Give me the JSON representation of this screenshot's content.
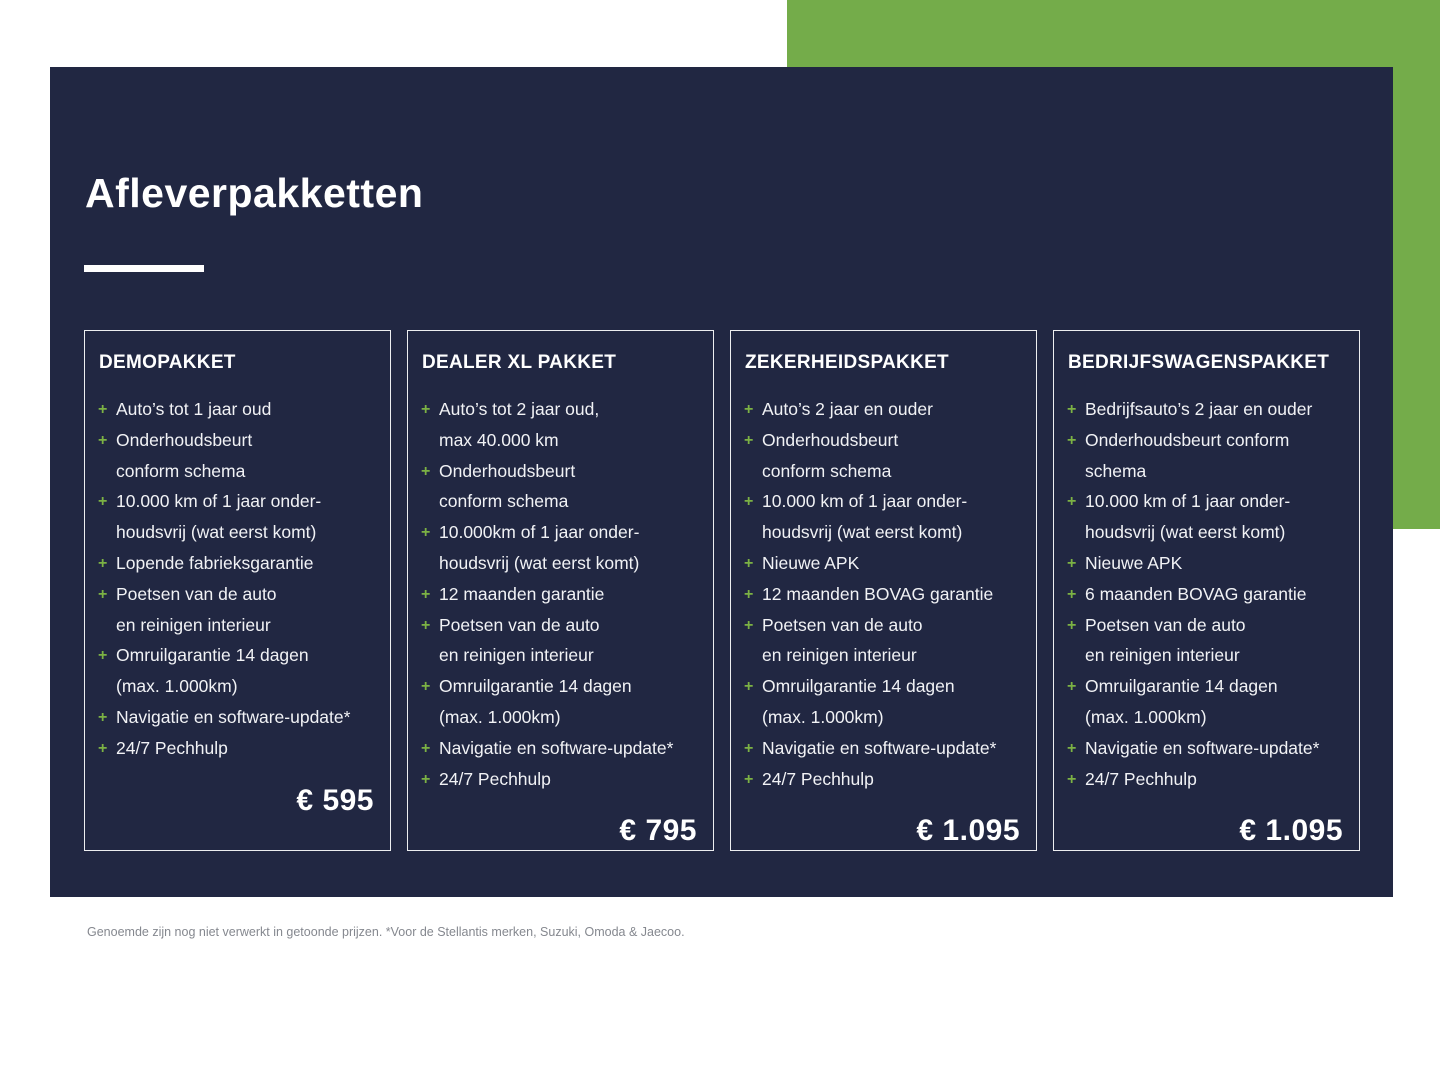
{
  "page": {
    "title": "Afleverpakketten",
    "footnote": "Genoemde zijn nog niet verwerkt in getoonde prijzen. *Voor de Stellantis merken, Suzuki, Omoda & Jaecoo."
  },
  "colors": {
    "navy": "#212742",
    "green": "#74AC4A",
    "plus": "#7CB244",
    "footer_text": "#85888F"
  },
  "plus_glyph": "+",
  "packages": [
    {
      "name": "DEMOPAKKET",
      "price": "€ 595",
      "items": [
        "Auto’s tot 1 jaar oud",
        "Onderhoudsbeurt\nconform schema",
        "10.000 km of 1 jaar onder-\nhoudsvrij (wat eerst komt)",
        "Lopende fabrieksgarantie",
        "Poetsen van de auto\nen reinigen interieur",
        "Omruilgarantie 14 dagen\n(max. 1.000km)",
        "Navigatie en software-update*",
        "24/7 Pechhulp"
      ]
    },
    {
      "name": "DEALER XL PAKKET",
      "price": "€ 795",
      "items": [
        "Auto’s tot 2 jaar oud,\nmax 40.000 km",
        "Onderhoudsbeurt\nconform schema",
        "10.000km of 1 jaar onder-\nhoudsvrij (wat eerst komt)",
        "12 maanden garantie",
        "Poetsen van de auto\nen reinigen interieur",
        "Omruilgarantie 14 dagen\n(max. 1.000km)",
        "Navigatie en software-update*",
        "24/7 Pechhulp"
      ]
    },
    {
      "name": "ZEKERHEIDSPAKKET",
      "price": "€ 1.095",
      "items": [
        "Auto’s 2 jaar en ouder",
        "Onderhoudsbeurt\nconform schema",
        "10.000 km of 1 jaar onder-\nhoudsvrij (wat eerst komt)",
        "Nieuwe APK",
        "12 maanden BOVAG garantie",
        "Poetsen van de auto\nen reinigen interieur",
        "Omruilgarantie 14 dagen\n(max. 1.000km)",
        "Navigatie en software-update*",
        "24/7 Pechhulp"
      ]
    },
    {
      "name": "BEDRIJFSWAGENSPAKKET",
      "price": "€ 1.095",
      "items": [
        "Bedrijfsauto’s 2 jaar en ouder",
        "Onderhoudsbeurt conform\nschema",
        "10.000 km of 1 jaar onder-\nhoudsvrij (wat eerst komt)",
        "Nieuwe APK",
        "6 maanden BOVAG garantie",
        "Poetsen van de auto\nen reinigen interieur",
        "Omruilgarantie 14 dagen\n(max. 1.000km)",
        "Navigatie en software-update*",
        "24/7 Pechhulp"
      ]
    }
  ]
}
